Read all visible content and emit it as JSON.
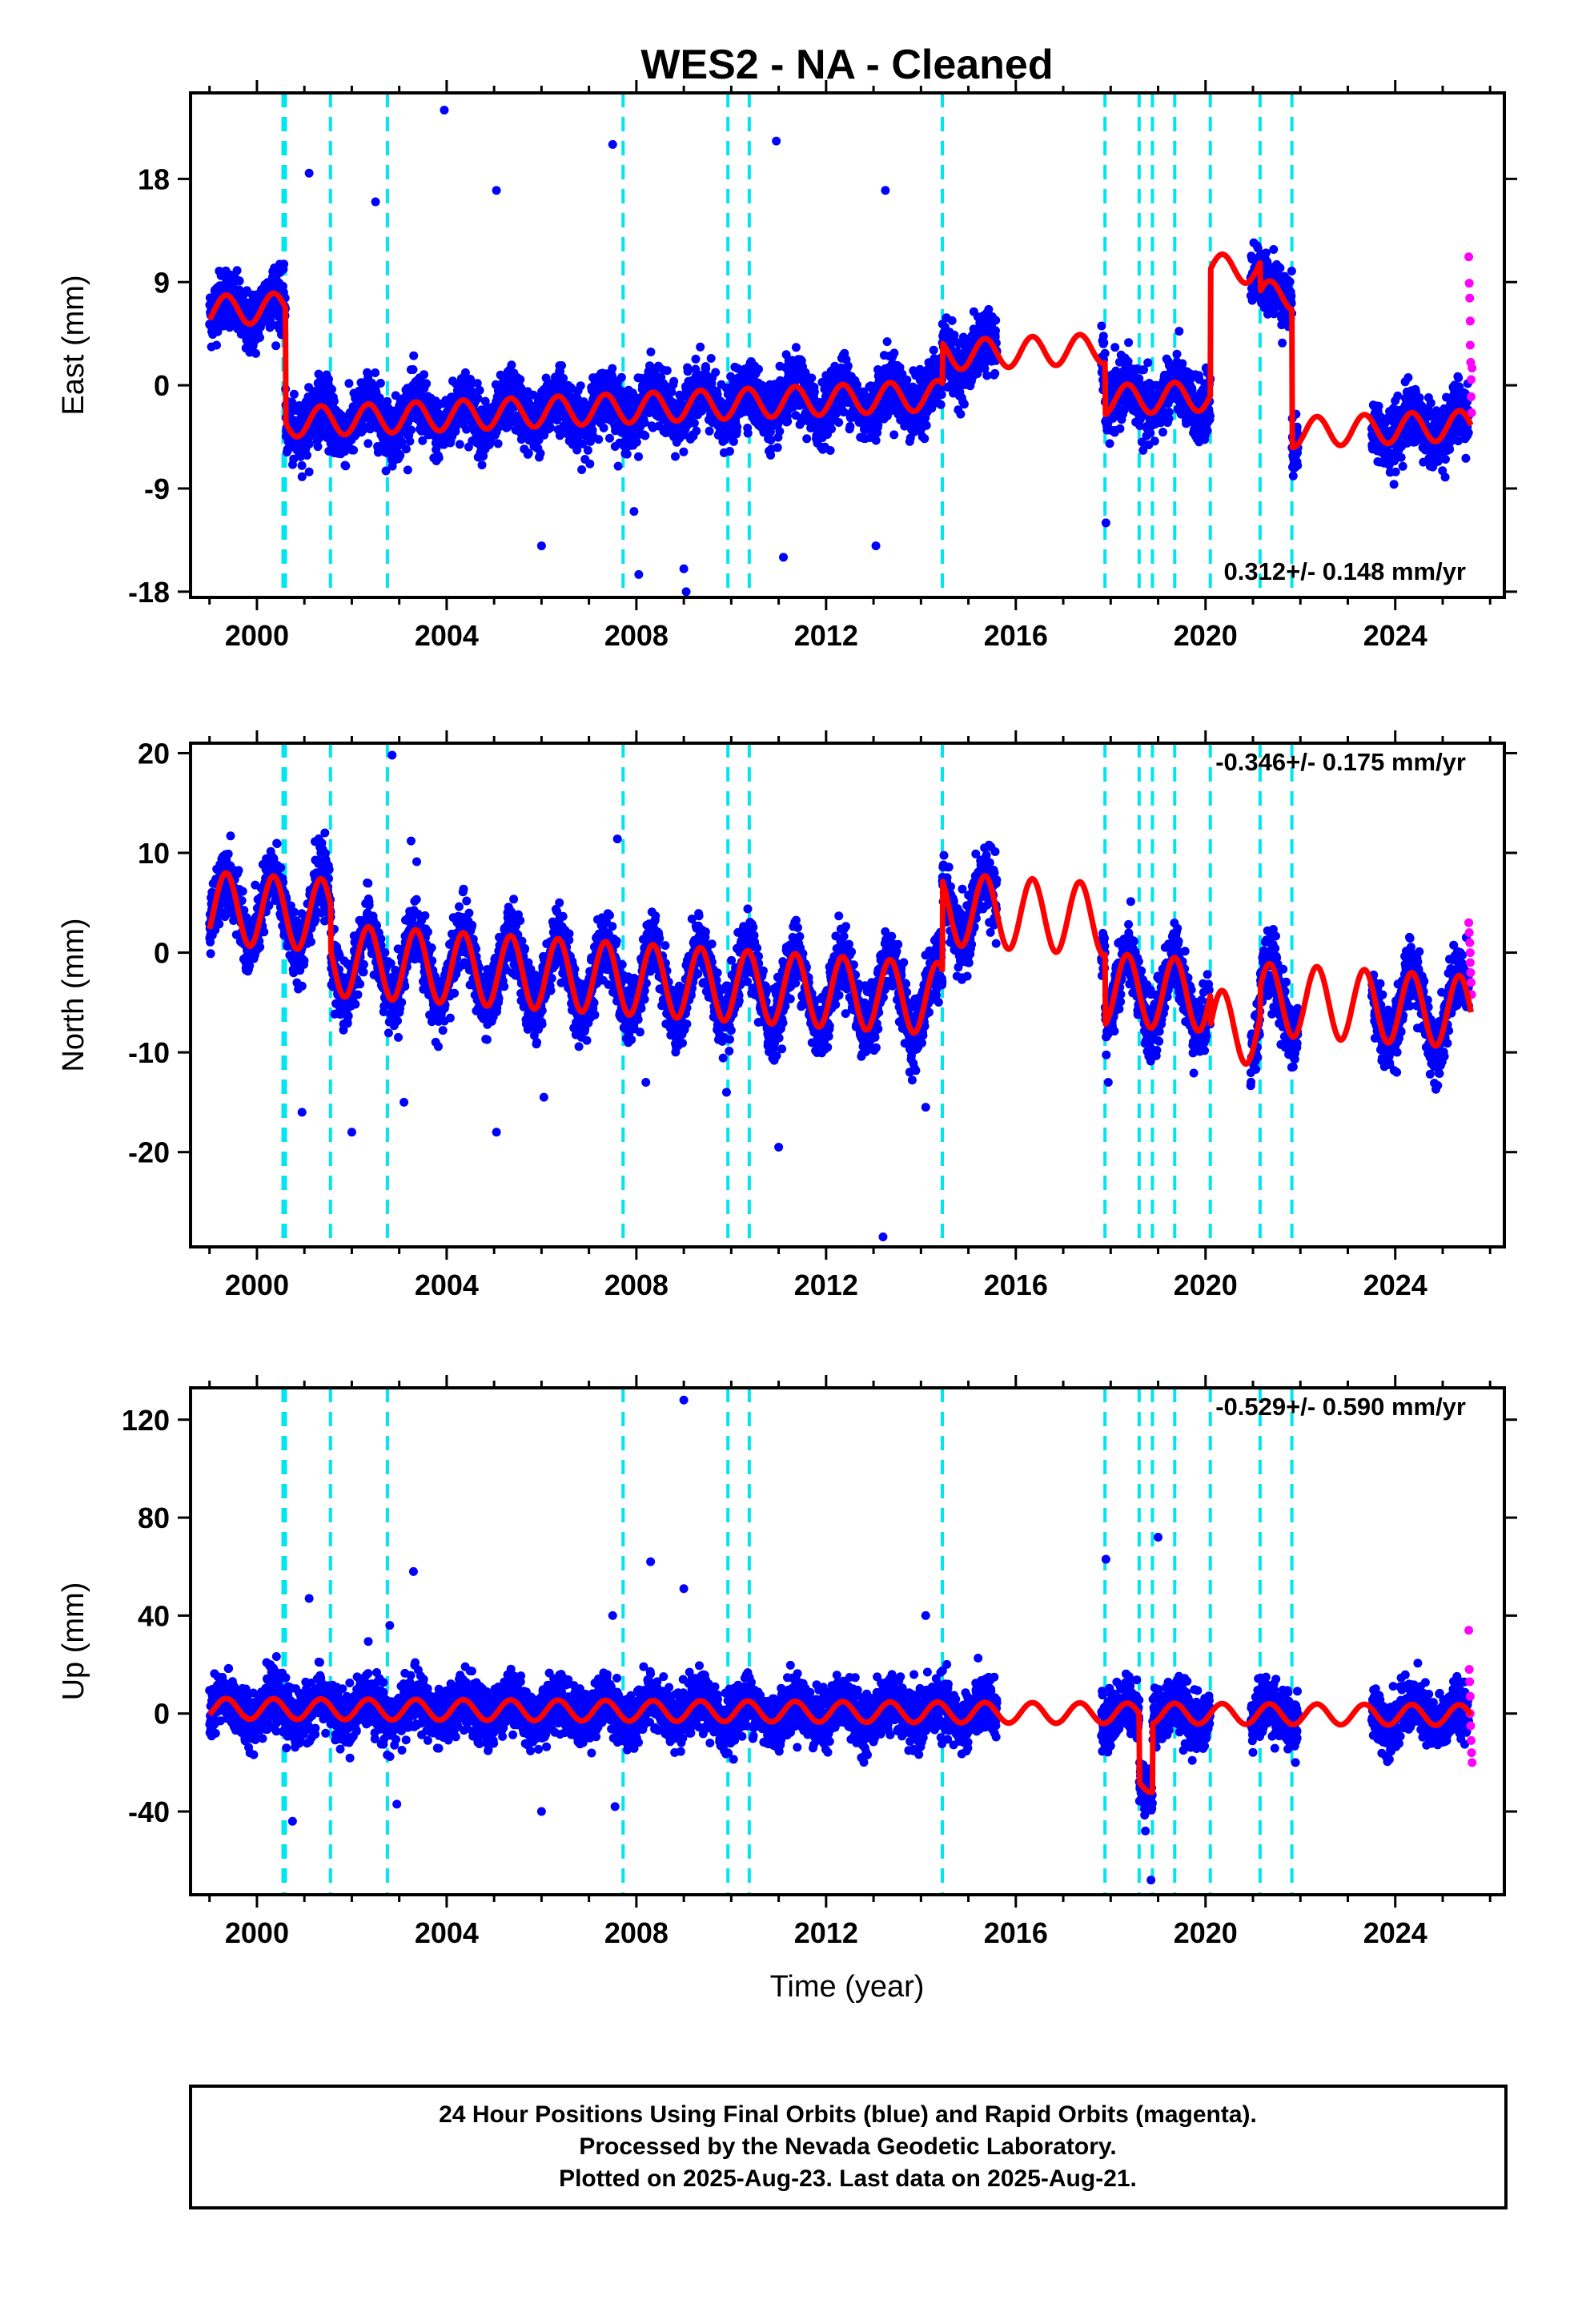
{
  "chart_data": {
    "title": "WES2  - NA - Cleaned",
    "type": "scatter",
    "xlabel": "Time (year)",
    "xlim": [
      1998.6,
      2026.3
    ],
    "xticks": [
      2000,
      2004,
      2008,
      2012,
      2016,
      2020,
      2024
    ],
    "colors": {
      "final": "#0000ff",
      "rapid": "#ff00ff",
      "model": "#ff0000",
      "offset": "#00e5ee"
    },
    "offset_epochs": [
      2000.55,
      2000.6,
      2001.55,
      2002.75,
      2007.72,
      2009.93,
      2010.38,
      2014.45,
      2017.88,
      2018.6,
      2018.88,
      2019.35,
      2020.1,
      2021.15,
      2021.82
    ],
    "gaps": [
      [
        2015.6,
        2017.8
      ],
      [
        2020.1,
        2020.95
      ],
      [
        2021.95,
        2023.5
      ]
    ],
    "panels": [
      {
        "component": "east",
        "ylabel": "East (mm)",
        "ylim": [
          -18.5,
          25.5
        ],
        "yticks": [
          18,
          9,
          0,
          -9,
          -18
        ],
        "ytick_labels": [
          "18",
          "9",
          "0",
          "-9",
          "-18"
        ],
        "rate_label": "0.312+/- 0.148 mm/yr",
        "rate_position": "bottom-right",
        "noise": 1.3,
        "outliers": [
          {
            "x": 2003.95,
            "y": 24.0
          },
          {
            "x": 2007.5,
            "y": 21.0
          },
          {
            "x": 2010.95,
            "y": 21.3
          },
          {
            "x": 2001.1,
            "y": 18.5
          },
          {
            "x": 2002.5,
            "y": 16.0
          },
          {
            "x": 2005.05,
            "y": 17.0
          },
          {
            "x": 2013.25,
            "y": 17.0
          },
          {
            "x": 2009.0,
            "y": -16.0
          },
          {
            "x": 2009.05,
            "y": -18.0
          },
          {
            "x": 2008.05,
            "y": -16.5
          },
          {
            "x": 2006.0,
            "y": -14.0
          },
          {
            "x": 2011.1,
            "y": -15.0
          },
          {
            "x": 2013.05,
            "y": -14.0
          },
          {
            "x": 2007.95,
            "y": -11.0
          },
          {
            "x": 2017.9,
            "y": -12.0
          }
        ],
        "rapid_points": [
          {
            "x": 2025.55,
            "y": 11.2
          },
          {
            "x": 2025.56,
            "y": 8.9
          },
          {
            "x": 2025.57,
            "y": 7.6
          },
          {
            "x": 2025.58,
            "y": 5.6
          },
          {
            "x": 2025.58,
            "y": 3.5
          },
          {
            "x": 2025.59,
            "y": 2.0
          },
          {
            "x": 2025.6,
            "y": 0.5
          },
          {
            "x": 2025.6,
            "y": -1.0
          },
          {
            "x": 2025.61,
            "y": -2.4
          },
          {
            "x": 2025.62,
            "y": 1.5
          }
        ]
      },
      {
        "component": "north",
        "ylabel": "North (mm)",
        "ylim": [
          -29.5,
          21
        ],
        "yticks": [
          20,
          10,
          0,
          -10,
          -20
        ],
        "ytick_labels": [
          "20",
          "10",
          "0",
          "-10",
          "-20"
        ],
        "rate_label": "-0.346+/- 0.175 mm/yr",
        "rate_position": "top-right",
        "noise": 1.6,
        "outliers": [
          {
            "x": 2002.85,
            "y": 19.8
          },
          {
            "x": 2003.25,
            "y": 11.2
          },
          {
            "x": 2007.6,
            "y": 11.4
          },
          {
            "x": 2013.2,
            "y": -28.5
          },
          {
            "x": 2011.0,
            "y": -19.5
          },
          {
            "x": 2005.05,
            "y": -18.0
          },
          {
            "x": 2000.95,
            "y": -16.0
          },
          {
            "x": 2002.0,
            "y": -18.0
          },
          {
            "x": 2003.1,
            "y": -15.0
          },
          {
            "x": 2008.2,
            "y": -13.0
          },
          {
            "x": 2009.9,
            "y": -14.0
          },
          {
            "x": 2017.95,
            "y": -13.0
          },
          {
            "x": 2006.05,
            "y": -14.5
          },
          {
            "x": 2014.1,
            "y": -15.5
          }
        ],
        "rapid_points": [
          {
            "x": 2025.55,
            "y": 3.0
          },
          {
            "x": 2025.56,
            "y": 2.0
          },
          {
            "x": 2025.57,
            "y": 1.0
          },
          {
            "x": 2025.58,
            "y": 0.0
          },
          {
            "x": 2025.58,
            "y": -1.0
          },
          {
            "x": 2025.59,
            "y": -2.0
          },
          {
            "x": 2025.6,
            "y": -3.0
          },
          {
            "x": 2025.61,
            "y": -4.2
          }
        ]
      },
      {
        "component": "up",
        "ylabel": "Up (mm)",
        "ylim": [
          -74,
          133
        ],
        "yticks": [
          120,
          80,
          40,
          0,
          -40
        ],
        "ytick_labels": [
          "120",
          "80",
          "40",
          "0",
          "-40"
        ],
        "rate_label": "-0.529+/- 0.590 mm/yr",
        "rate_position": "top-right",
        "noise": 5.5,
        "outliers": [
          {
            "x": 2009.0,
            "y": 128
          },
          {
            "x": 2019.0,
            "y": 72
          },
          {
            "x": 2017.9,
            "y": 63
          },
          {
            "x": 2008.3,
            "y": 62
          },
          {
            "x": 2003.3,
            "y": 58
          },
          {
            "x": 2009.0,
            "y": 51
          },
          {
            "x": 2001.1,
            "y": 47
          },
          {
            "x": 2014.1,
            "y": 40
          },
          {
            "x": 2002.8,
            "y": 36
          },
          {
            "x": 2007.5,
            "y": 40
          },
          {
            "x": 2000.75,
            "y": -44
          },
          {
            "x": 2002.95,
            "y": -37
          },
          {
            "x": 2006.0,
            "y": -40
          },
          {
            "x": 2007.55,
            "y": -38
          },
          {
            "x": 2018.85,
            "y": -68
          }
        ],
        "rapid_points": [
          {
            "x": 2025.55,
            "y": 34
          },
          {
            "x": 2025.56,
            "y": 18
          },
          {
            "x": 2025.57,
            "y": 13
          },
          {
            "x": 2025.58,
            "y": 7
          },
          {
            "x": 2025.58,
            "y": 0
          },
          {
            "x": 2025.59,
            "y": -5
          },
          {
            "x": 2025.6,
            "y": -11
          },
          {
            "x": 2025.61,
            "y": -16
          },
          {
            "x": 2025.62,
            "y": -20
          }
        ]
      }
    ]
  },
  "footer": {
    "line1": "24 Hour Positions Using Final Orbits (blue) and Rapid Orbits (magenta).",
    "line2": "Processed by the Nevada Geodetic Laboratory.",
    "line3": "Plotted on 2025-Aug-23. Last data on 2025-Aug-21."
  }
}
